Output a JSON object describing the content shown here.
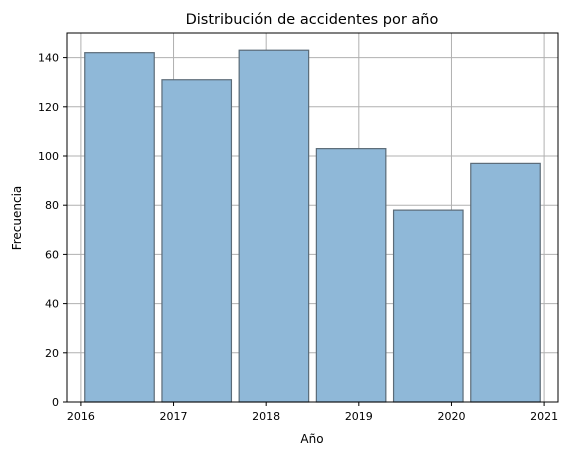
{
  "chart_data": {
    "type": "bar",
    "title": "Distribución de accidentes por año",
    "xlabel": "Año",
    "ylabel": "Frecuencia",
    "bins": [
      {
        "from": 2016.0,
        "to": 2016.8333,
        "value": 142
      },
      {
        "from": 2016.8333,
        "to": 2017.6667,
        "value": 131
      },
      {
        "from": 2017.6667,
        "to": 2018.5,
        "value": 143
      },
      {
        "from": 2018.5,
        "to": 2019.3333,
        "value": 103
      },
      {
        "from": 2019.3333,
        "to": 2020.1667,
        "value": 78
      },
      {
        "from": 2020.1667,
        "to": 2021.0,
        "value": 97
      }
    ],
    "xlim": [
      2015.85,
      2021.15
    ],
    "ylim": [
      0,
      150
    ],
    "xticks": [
      "2016",
      "2017",
      "2018",
      "2019",
      "2020",
      "2021"
    ],
    "xtick_values": [
      2016,
      2017,
      2018,
      2019,
      2020,
      2021
    ],
    "yticks": [
      "0",
      "20",
      "40",
      "60",
      "80",
      "100",
      "120",
      "140"
    ],
    "ytick_values": [
      0,
      20,
      40,
      60,
      80,
      100,
      120,
      140
    ],
    "grid": true,
    "bar_color": "#8fb8d8",
    "bar_edge_color": "#5b6b78"
  }
}
